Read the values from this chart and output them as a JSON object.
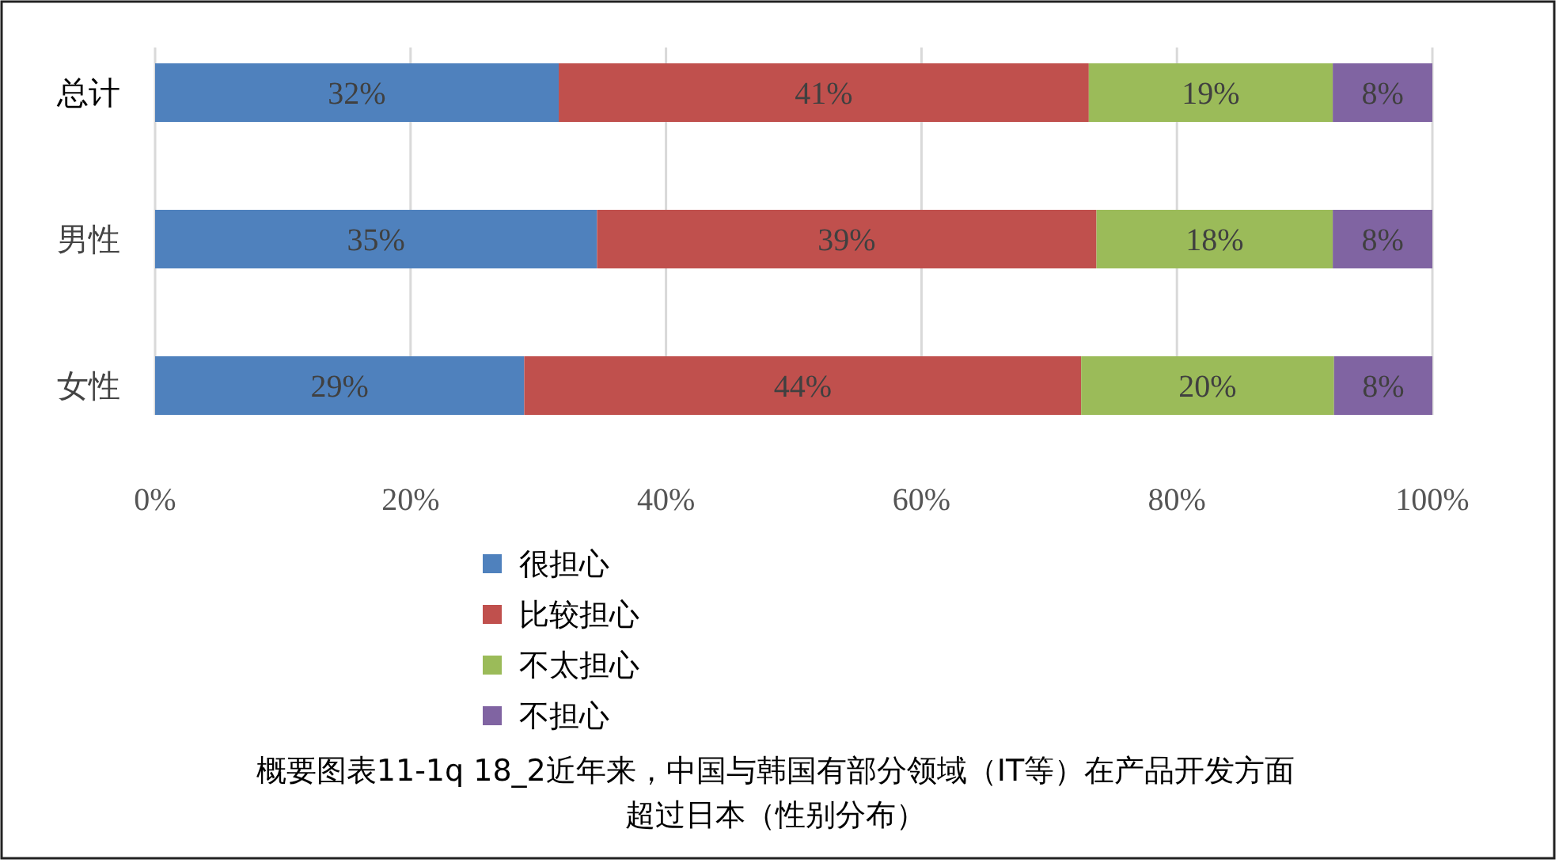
{
  "chart_data": {
    "type": "bar",
    "orientation": "horizontal",
    "stacked": true,
    "categories": [
      "总计",
      "男性",
      "女性"
    ],
    "series": [
      {
        "name": "很担心",
        "color": "#4f81bd",
        "values": [
          31.6,
          34.6,
          28.9
        ],
        "value_labels": [
          "32%",
          "35%",
          "29%"
        ]
      },
      {
        "name": "比较担心",
        "color": "#c0504d",
        "values": [
          41.5,
          39.1,
          43.6
        ],
        "value_labels": [
          "41%",
          "39%",
          "44%"
        ]
      },
      {
        "name": "不太担心",
        "color": "#9bbb59",
        "values": [
          19.1,
          18.5,
          19.8
        ],
        "value_labels": [
          "19%",
          "18%",
          "20%"
        ]
      },
      {
        "name": "不担心",
        "color": "#8064a2",
        "values": [
          7.8,
          7.8,
          7.7
        ],
        "value_labels": [
          "8%",
          "8%",
          "8%"
        ]
      }
    ],
    "xlim": [
      0,
      100
    ],
    "xticks": [
      {
        "value": 0,
        "label": "0%"
      },
      {
        "value": 20,
        "label": "20%"
      },
      {
        "value": 40,
        "label": "40%"
      },
      {
        "value": 60,
        "label": "60%"
      },
      {
        "value": 80,
        "label": "80%"
      },
      {
        "value": 100,
        "label": "100%"
      }
    ],
    "grid": "x",
    "legend": "bottom",
    "annotations": [
      "概要图表11-1q 18_2近年来，中国与韩国有部分领域（IT等）在产品开发方面超过日本（性别分布）"
    ]
  }
}
